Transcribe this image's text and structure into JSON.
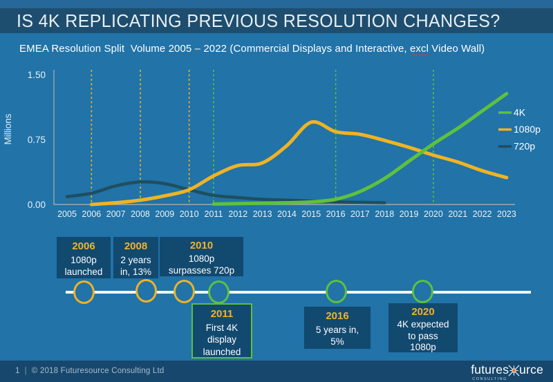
{
  "header": {
    "title": "IS 4K REPLICATING PREVIOUS RESOLUTION CHANGES?"
  },
  "subtitle": {
    "part1": "EMEA Resolution Split  Volume 2005 – 2022 (Commercial Displays and Interactive, ",
    "excl": "excl",
    "part2": " Video Wall)"
  },
  "colors": {
    "background": "#2173A8",
    "title_band": "#1E4E6F",
    "box_fill": "#12496F",
    "footer_bar": "#17476C",
    "yellow": "#F0B323",
    "green": "#5EC13D",
    "teal_720p": "#1F4E60",
    "axis_gray": "#9FA9AF",
    "text_white": "#FFFFFF"
  },
  "chart_data": {
    "type": "line",
    "title": "EMEA Resolution Split Volume 2005 – 2022 (Commercial Displays and Interactive, excl Video Wall)",
    "ylabel": "Millions",
    "xlabel": "",
    "x": [
      2005,
      2006,
      2007,
      2008,
      2009,
      2010,
      2011,
      2012,
      2013,
      2014,
      2015,
      2016,
      2017,
      2018,
      2019,
      2020,
      2021,
      2022,
      2023
    ],
    "ylim": [
      0,
      1.5
    ],
    "yticks": [
      0,
      0.75,
      1.5
    ],
    "grid": "vertical dashed event lines only",
    "legend_position": "right",
    "series": [
      {
        "name": "4K",
        "color": "#5EC13D",
        "x": [
          2011,
          2012,
          2013,
          2014,
          2015,
          2016,
          2017,
          2018,
          2019,
          2020,
          2021,
          2022,
          2023
        ],
        "values": [
          0.005,
          0.01,
          0.015,
          0.02,
          0.03,
          0.06,
          0.15,
          0.3,
          0.5,
          0.7,
          0.88,
          1.08,
          1.28
        ]
      },
      {
        "name": "1080p",
        "color": "#F0B323",
        "x": [
          2006,
          2007,
          2008,
          2009,
          2010,
          2011,
          2012,
          2013,
          2014,
          2015,
          2016,
          2017,
          2018,
          2019,
          2020,
          2021,
          2022,
          2023
        ],
        "values": [
          0.0,
          0.02,
          0.05,
          0.1,
          0.17,
          0.33,
          0.45,
          0.48,
          0.68,
          0.95,
          0.84,
          0.81,
          0.74,
          0.66,
          0.57,
          0.49,
          0.39,
          0.31
        ]
      },
      {
        "name": "720p",
        "color": "#1F4E60",
        "x": [
          2005,
          2006,
          2007,
          2008,
          2009,
          2010,
          2011,
          2012,
          2013,
          2014,
          2015,
          2016,
          2017,
          2018
        ],
        "values": [
          0.09,
          0.13,
          0.215,
          0.26,
          0.24,
          0.17,
          0.105,
          0.08,
          0.06,
          0.05,
          0.04,
          0.03,
          0.025,
          0.02
        ]
      }
    ],
    "event_lines": [
      {
        "year": 2006,
        "theme": "yellow"
      },
      {
        "year": 2008,
        "theme": "yellow"
      },
      {
        "year": 2010,
        "theme": "yellow"
      },
      {
        "year": 2011,
        "theme": "green"
      },
      {
        "year": 2016,
        "theme": "green"
      },
      {
        "year": 2020,
        "theme": "green"
      }
    ]
  },
  "timeline": {
    "events": [
      {
        "year": "2006",
        "lines": [
          "1080p",
          "launched"
        ],
        "theme": "yellow",
        "position": "above"
      },
      {
        "year": "2008",
        "lines": [
          "2 years",
          "in, 13%"
        ],
        "theme": "yellow",
        "position": "above"
      },
      {
        "year": "2010",
        "lines": [
          "1080p",
          "surpasses 720p"
        ],
        "theme": "yellow",
        "position": "above"
      },
      {
        "year": "2011",
        "lines": [
          "First 4K",
          "display",
          "launched"
        ],
        "theme": "green",
        "position": "below"
      },
      {
        "year": "2016",
        "lines": [
          "5 years in,",
          "5%"
        ],
        "theme": "green",
        "position": "below"
      },
      {
        "year": "2020",
        "lines": [
          "4K expected",
          "to pass",
          "1080p"
        ],
        "theme": "green",
        "position": "below"
      }
    ]
  },
  "footer": {
    "page": "1",
    "separator": "|",
    "copyright": "© 2018 Futuresource Consulting Ltd",
    "logo": {
      "part1": "futures",
      "part2": "urce",
      "tagline": "CONSULTING"
    }
  }
}
